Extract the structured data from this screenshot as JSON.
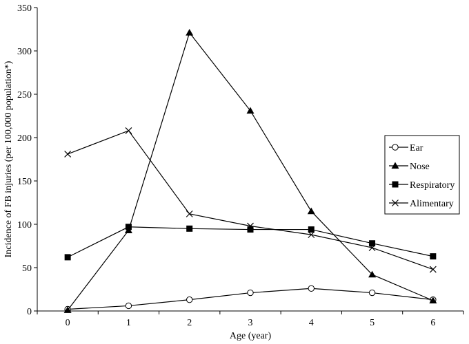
{
  "chart_data": {
    "type": "line",
    "title": "",
    "xlabel": "Age (year)",
    "ylabel": "Incidence of FB injuries (per 100,000 population*)",
    "x": [
      0,
      1,
      2,
      3,
      4,
      5,
      6
    ],
    "xlim": [
      -0.5,
      6.5
    ],
    "ylim": [
      0,
      350
    ],
    "y_ticks": [
      0,
      50,
      100,
      150,
      200,
      250,
      300,
      350
    ],
    "grid": false,
    "legend_position": "right",
    "series": [
      {
        "name": "Ear",
        "marker": "open-circle",
        "color": "#000000",
        "values": [
          2,
          6,
          13,
          21,
          26,
          21,
          13
        ]
      },
      {
        "name": "Nose",
        "marker": "filled-triangle",
        "color": "#000000",
        "values": [
          1,
          93,
          321,
          231,
          115,
          42,
          12
        ]
      },
      {
        "name": "Respiratory",
        "marker": "filled-square",
        "color": "#000000",
        "values": [
          62,
          97,
          95,
          94,
          94,
          78,
          63
        ]
      },
      {
        "name": "Alimentary",
        "marker": "x",
        "color": "#000000",
        "values": [
          181,
          208,
          112,
          98,
          88,
          73,
          48
        ]
      }
    ]
  }
}
